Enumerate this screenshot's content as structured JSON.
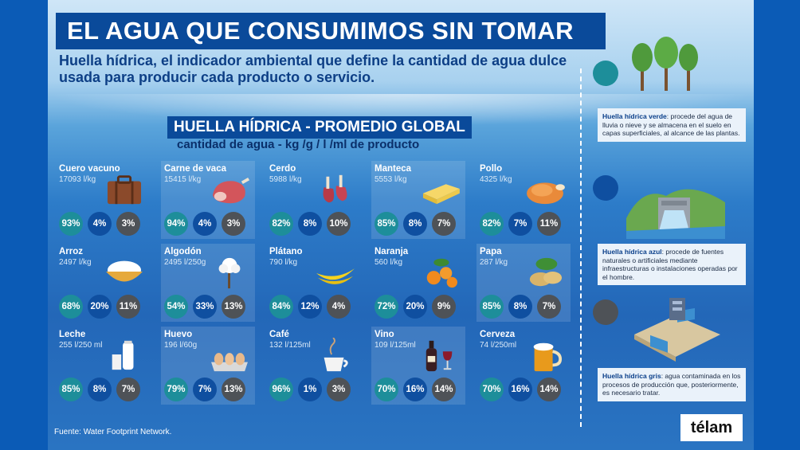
{
  "title": "EL AGUA QUE CONSUMIMOS SIN TOMAR",
  "subtitle": "Huella hídrica, el indicador ambiental que define la cantidad de agua dulce usada para producir cada producto o servicio.",
  "section_title": "HUELLA HÍDRICA - PROMEDIO GLOBAL",
  "section_subtitle": "cantidad de agua - kg /g / l /ml de producto",
  "products": [
    {
      "name": "Cuero vacuno",
      "value": "17093 l/kg",
      "green": "93%",
      "blue": "4%",
      "gray": "3%",
      "icon": "suitcase-icon"
    },
    {
      "name": "Carne de vaca",
      "value": "15415 l/kg",
      "green": "94%",
      "blue": "4%",
      "gray": "3%",
      "icon": "ham-icon"
    },
    {
      "name": "Cerdo",
      "value": "5988 l/kg",
      "green": "82%",
      "blue": "8%",
      "gray": "10%",
      "icon": "pork-chops-icon"
    },
    {
      "name": "Manteca",
      "value": "5553 l/kg",
      "green": "85%",
      "blue": "8%",
      "gray": "7%",
      "icon": "butter-icon"
    },
    {
      "name": "Pollo",
      "value": "4325 l/kg",
      "green": "82%",
      "blue": "7%",
      "gray": "11%",
      "icon": "roast-chicken-icon"
    },
    {
      "name": "Arroz",
      "value": "2497 l/kg",
      "green": "68%",
      "blue": "20%",
      "gray": "11%",
      "icon": "rice-bowl-icon"
    },
    {
      "name": "Algodón",
      "value": "2495 l/250g",
      "green": "54%",
      "blue": "33%",
      "gray": "13%",
      "icon": "cotton-icon"
    },
    {
      "name": "Plátano",
      "value": "790 l/kg",
      "green": "84%",
      "blue": "12%",
      "gray": "4%",
      "icon": "banana-icon"
    },
    {
      "name": "Naranja",
      "value": "560 l/kg",
      "green": "72%",
      "blue": "20%",
      "gray": "9%",
      "icon": "orange-icon"
    },
    {
      "name": "Papa",
      "value": "287 l/kg",
      "green": "85%",
      "blue": "8%",
      "gray": "7%",
      "icon": "potato-icon"
    },
    {
      "name": "Leche",
      "value": "255 l/250 ml",
      "green": "85%",
      "blue": "8%",
      "gray": "7%",
      "icon": "milk-icon"
    },
    {
      "name": "Huevo",
      "value": "196 l/60g",
      "green": "79%",
      "blue": "7%",
      "gray": "13%",
      "icon": "eggs-icon"
    },
    {
      "name": "Café",
      "value": "132 l/125ml",
      "green": "96%",
      "blue": "1%",
      "gray": "3%",
      "icon": "coffee-icon"
    },
    {
      "name": "Vino",
      "value": "109 l/125ml",
      "green": "70%",
      "blue": "16%",
      "gray": "14%",
      "icon": "wine-icon"
    },
    {
      "name": "Cerveza",
      "value": "74 l/250ml",
      "green": "70%",
      "blue": "16%",
      "gray": "14%",
      "icon": "beer-icon"
    }
  ],
  "legend": {
    "green": {
      "term": "Huella hídrica verde",
      "text": ": procede del agua de lluvia o nieve y se almacena en el suelo en capas superficiales, al alcance de las plantas.",
      "color": "#1d8e9a"
    },
    "blue": {
      "term": "Huella hídrica azul",
      "text": ": procede de fuentes naturales o artificiales mediante infraestructuras o instalaciones operadas por el hombre.",
      "color": "#0f4fa0"
    },
    "gray": {
      "term": "Huella hídrica gris",
      "text": ": agua contaminada en los procesos de producción que, posteriormente, es necesario tratar.",
      "color": "#4e5257"
    }
  },
  "source": "Fuente: Water Footprint Network.",
  "logo": "télam"
}
